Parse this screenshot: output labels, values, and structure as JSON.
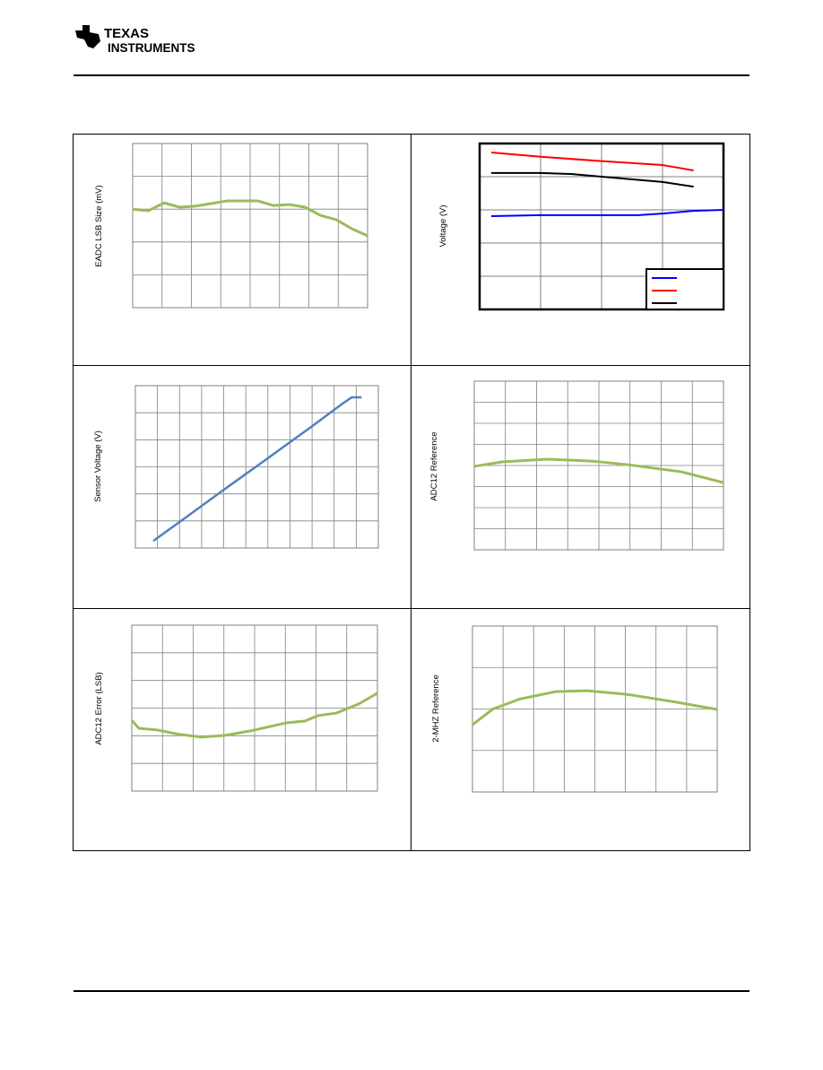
{
  "header": {
    "logo_line1": "TEXAS",
    "logo_line2": "INSTRUMENTS"
  },
  "chart_data": [
    {
      "type": "line",
      "ylabel": "EADC LSB Size (mV)",
      "xlim": [
        0,
        8
      ],
      "ylim": [
        0,
        5
      ],
      "grid": true,
      "series": [
        {
          "color": "#9bbb59",
          "x": [
            0,
            0.53,
            1.07,
            1.6,
            2.13,
            2.67,
            3.2,
            3.73,
            4.27,
            4.8,
            5.33,
            5.87,
            6.4,
            6.93,
            7.47,
            8
          ],
          "values": [
            3.0,
            2.95,
            3.19,
            3.06,
            3.09,
            3.17,
            3.25,
            3.25,
            3.25,
            3.11,
            3.14,
            3.06,
            2.81,
            2.68,
            2.4,
            2.19
          ]
        }
      ]
    },
    {
      "type": "line",
      "ylabel": "Voltage (V)",
      "xlim": [
        0,
        4
      ],
      "ylim": [
        0,
        5
      ],
      "grid": true,
      "legend": "lower right",
      "series": [
        {
          "color": "#0000ff",
          "x": [
            0.19,
            1,
            2,
            2.6,
            3,
            3.5,
            4
          ],
          "values": [
            2.81,
            2.84,
            2.84,
            2.84,
            2.89,
            2.97,
            3.0
          ]
        },
        {
          "color": "#ff0000",
          "x": [
            0.19,
            1,
            2,
            3,
            3.51
          ],
          "values": [
            4.73,
            4.6,
            4.47,
            4.35,
            4.19
          ]
        },
        {
          "color": "#000000",
          "x": [
            0.19,
            1,
            1.5,
            2,
            3,
            3.51
          ],
          "values": [
            4.11,
            4.11,
            4.08,
            4.0,
            3.84,
            3.7
          ]
        }
      ]
    },
    {
      "type": "line",
      "ylabel": "Sensor Voltage (V)",
      "xlim": [
        0,
        11
      ],
      "ylim": [
        0,
        6
      ],
      "grid": true,
      "series": [
        {
          "color": "#4f81bd",
          "x": [
            0.81,
            2,
            4,
            6,
            7,
            8,
            9.4,
            9.8,
            10.24
          ],
          "values": [
            0.26,
            0.96,
            2.15,
            3.32,
            3.91,
            4.5,
            5.35,
            5.57,
            5.57
          ]
        }
      ]
    },
    {
      "type": "line",
      "ylabel": "ADC12 Reference",
      "xlim": [
        0,
        8
      ],
      "ylim": [
        0,
        8
      ],
      "grid": true,
      "series": [
        {
          "color": "#9bbb59",
          "x": [
            0,
            0.89,
            2.33,
            3.77,
            4.92,
            6.65,
            8
          ],
          "values": [
            3.96,
            4.17,
            4.3,
            4.21,
            4.04,
            3.7,
            3.19
          ]
        }
      ]
    },
    {
      "type": "line",
      "ylabel": "ADC12 Error (LSB)",
      "xlim": [
        0,
        8
      ],
      "ylim": [
        0,
        6
      ],
      "grid": true,
      "series": [
        {
          "color": "#9bbb59",
          "x": [
            0,
            0.23,
            0.82,
            1.55,
            2.28,
            3.01,
            3.88,
            5.05,
            5.63,
            6.07,
            6.66,
            7.39,
            8
          ],
          "values": [
            2.56,
            2.27,
            2.21,
            2.05,
            1.95,
            2.01,
            2.18,
            2.47,
            2.53,
            2.73,
            2.82,
            3.15,
            3.54
          ]
        }
      ]
    },
    {
      "type": "line",
      "ylabel": "2-MHZ Reference",
      "xlim": [
        0,
        8
      ],
      "ylim": [
        0,
        4
      ],
      "grid": true,
      "series": [
        {
          "color": "#9bbb59",
          "x": [
            0,
            0.67,
            1.55,
            2.73,
            3.76,
            5.08,
            6.54,
            8
          ],
          "values": [
            1.62,
            2.0,
            2.24,
            2.42,
            2.44,
            2.35,
            2.18,
            1.99
          ]
        }
      ]
    }
  ]
}
